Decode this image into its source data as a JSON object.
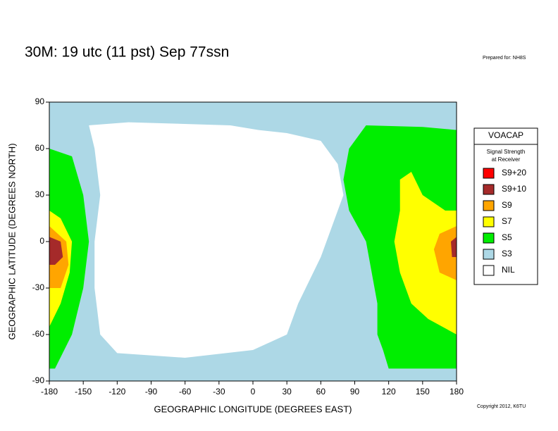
{
  "title": "30M:  19 utc (11 pst) Sep 77ssn",
  "prepared": "Prepared for: NH8S",
  "copyright": "Copyright 2012, K6TU",
  "map": {
    "xlabel": "GEOGRAPHIC LONGITUDE (DEGREES EAST)",
    "ylabel": "GEOGRAPHIC LATITUDE (DEGREES NORTH)",
    "xlim": [
      -180,
      180
    ],
    "ylim": [
      -90,
      90
    ],
    "xticks": [
      -180,
      -150,
      -120,
      -90,
      -60,
      -30,
      0,
      30,
      60,
      90,
      120,
      150,
      180
    ],
    "yticks": [
      -90,
      -60,
      -30,
      0,
      30,
      60,
      90
    ]
  },
  "legend": {
    "title": "VOACAP",
    "subtitle": [
      "Signal Strength",
      "at Receiver"
    ],
    "items": [
      {
        "label": "S9+20",
        "color": "#ff0000"
      },
      {
        "label": "S9+10",
        "color": "#a52a2a"
      },
      {
        "label": "S9",
        "color": "#ffa500"
      },
      {
        "label": "S7",
        "color": "#ffff00"
      },
      {
        "label": "S5",
        "color": "#00ee00"
      },
      {
        "label": "S3",
        "color": "#add8e6"
      },
      {
        "label": "NIL",
        "color": "#ffffff"
      }
    ]
  }
}
